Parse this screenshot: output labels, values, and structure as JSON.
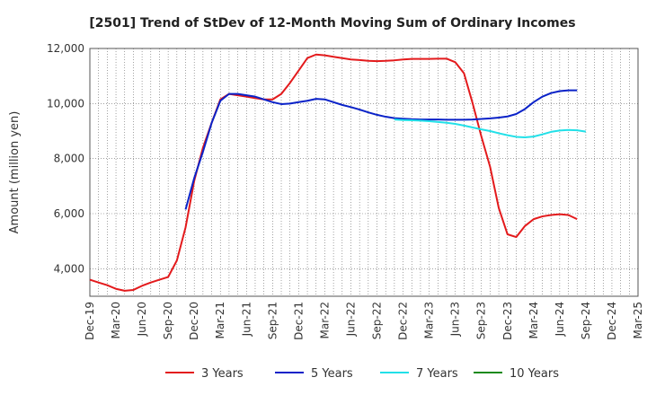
{
  "chart_data": {
    "type": "line",
    "title": "[2501]  Trend of StDev of 12-Month Moving Sum of Ordinary Incomes",
    "ylabel": "Amount (million yen)",
    "xlabel": "",
    "ylim": [
      3000,
      12000
    ],
    "yticks": [
      4000,
      6000,
      8000,
      10000,
      12000
    ],
    "ytick_labels": [
      "4,000",
      "6,000",
      "8,000",
      "10,000",
      "12,000"
    ],
    "x_range": [
      "2019-12",
      "2025-03"
    ],
    "xtick_labels": [
      "Dec-19",
      "Mar-20",
      "Jun-20",
      "Sep-20",
      "Dec-20",
      "Mar-21",
      "Jun-21",
      "Sep-21",
      "Dec-21",
      "Mar-22",
      "Jun-22",
      "Sep-22",
      "Dec-22",
      "Mar-23",
      "Jun-23",
      "Sep-23",
      "Dec-23",
      "Mar-24",
      "Jun-24",
      "Sep-24",
      "Dec-24",
      "Mar-25"
    ],
    "grid": true,
    "legend_position": "bottom",
    "series": [
      {
        "name": "3 Years",
        "color": "#e31a1c",
        "start": "2019-12",
        "values": [
          3600,
          3500,
          3400,
          3270,
          3200,
          3230,
          3380,
          3500,
          3600,
          3700,
          4300,
          5500,
          7200,
          8400,
          9300,
          10150,
          10350,
          10300,
          10250,
          10200,
          10150,
          10150,
          10350,
          10750,
          11200,
          11650,
          11780,
          11750,
          11700,
          11650,
          11600,
          11580,
          11550,
          11540,
          11550,
          11570,
          11600,
          11620,
          11620,
          11620,
          11630,
          11630,
          11500,
          11100,
          10000,
          8800,
          7700,
          6200,
          5250,
          5150,
          5550,
          5800,
          5900,
          5950,
          5980,
          5950,
          5800
        ]
      },
      {
        "name": "5 Years",
        "color": "#0a22c8",
        "start": "2020-11",
        "values": [
          6150,
          7300,
          8250,
          9300,
          10100,
          10350,
          10350,
          10300,
          10250,
          10150,
          10050,
          9980,
          10000,
          10050,
          10100,
          10170,
          10150,
          10050,
          9950,
          9870,
          9780,
          9680,
          9590,
          9520,
          9470,
          9450,
          9430,
          9420,
          9420,
          9420,
          9410,
          9410,
          9410,
          9420,
          9440,
          9460,
          9490,
          9530,
          9620,
          9800,
          10050,
          10250,
          10380,
          10450,
          10480,
          10480
        ]
      },
      {
        "name": "7 Years",
        "color": "#22e0e8",
        "start": "2022-11",
        "values": [
          9420,
          9400,
          9390,
          9380,
          9360,
          9330,
          9300,
          9260,
          9200,
          9130,
          9060,
          9000,
          8920,
          8850,
          8790,
          8770,
          8800,
          8880,
          8970,
          9020,
          9040,
          9030,
          8980
        ]
      },
      {
        "name": "10 Years",
        "color": "#1a8a1a",
        "start": "2024-12",
        "values": []
      }
    ]
  }
}
